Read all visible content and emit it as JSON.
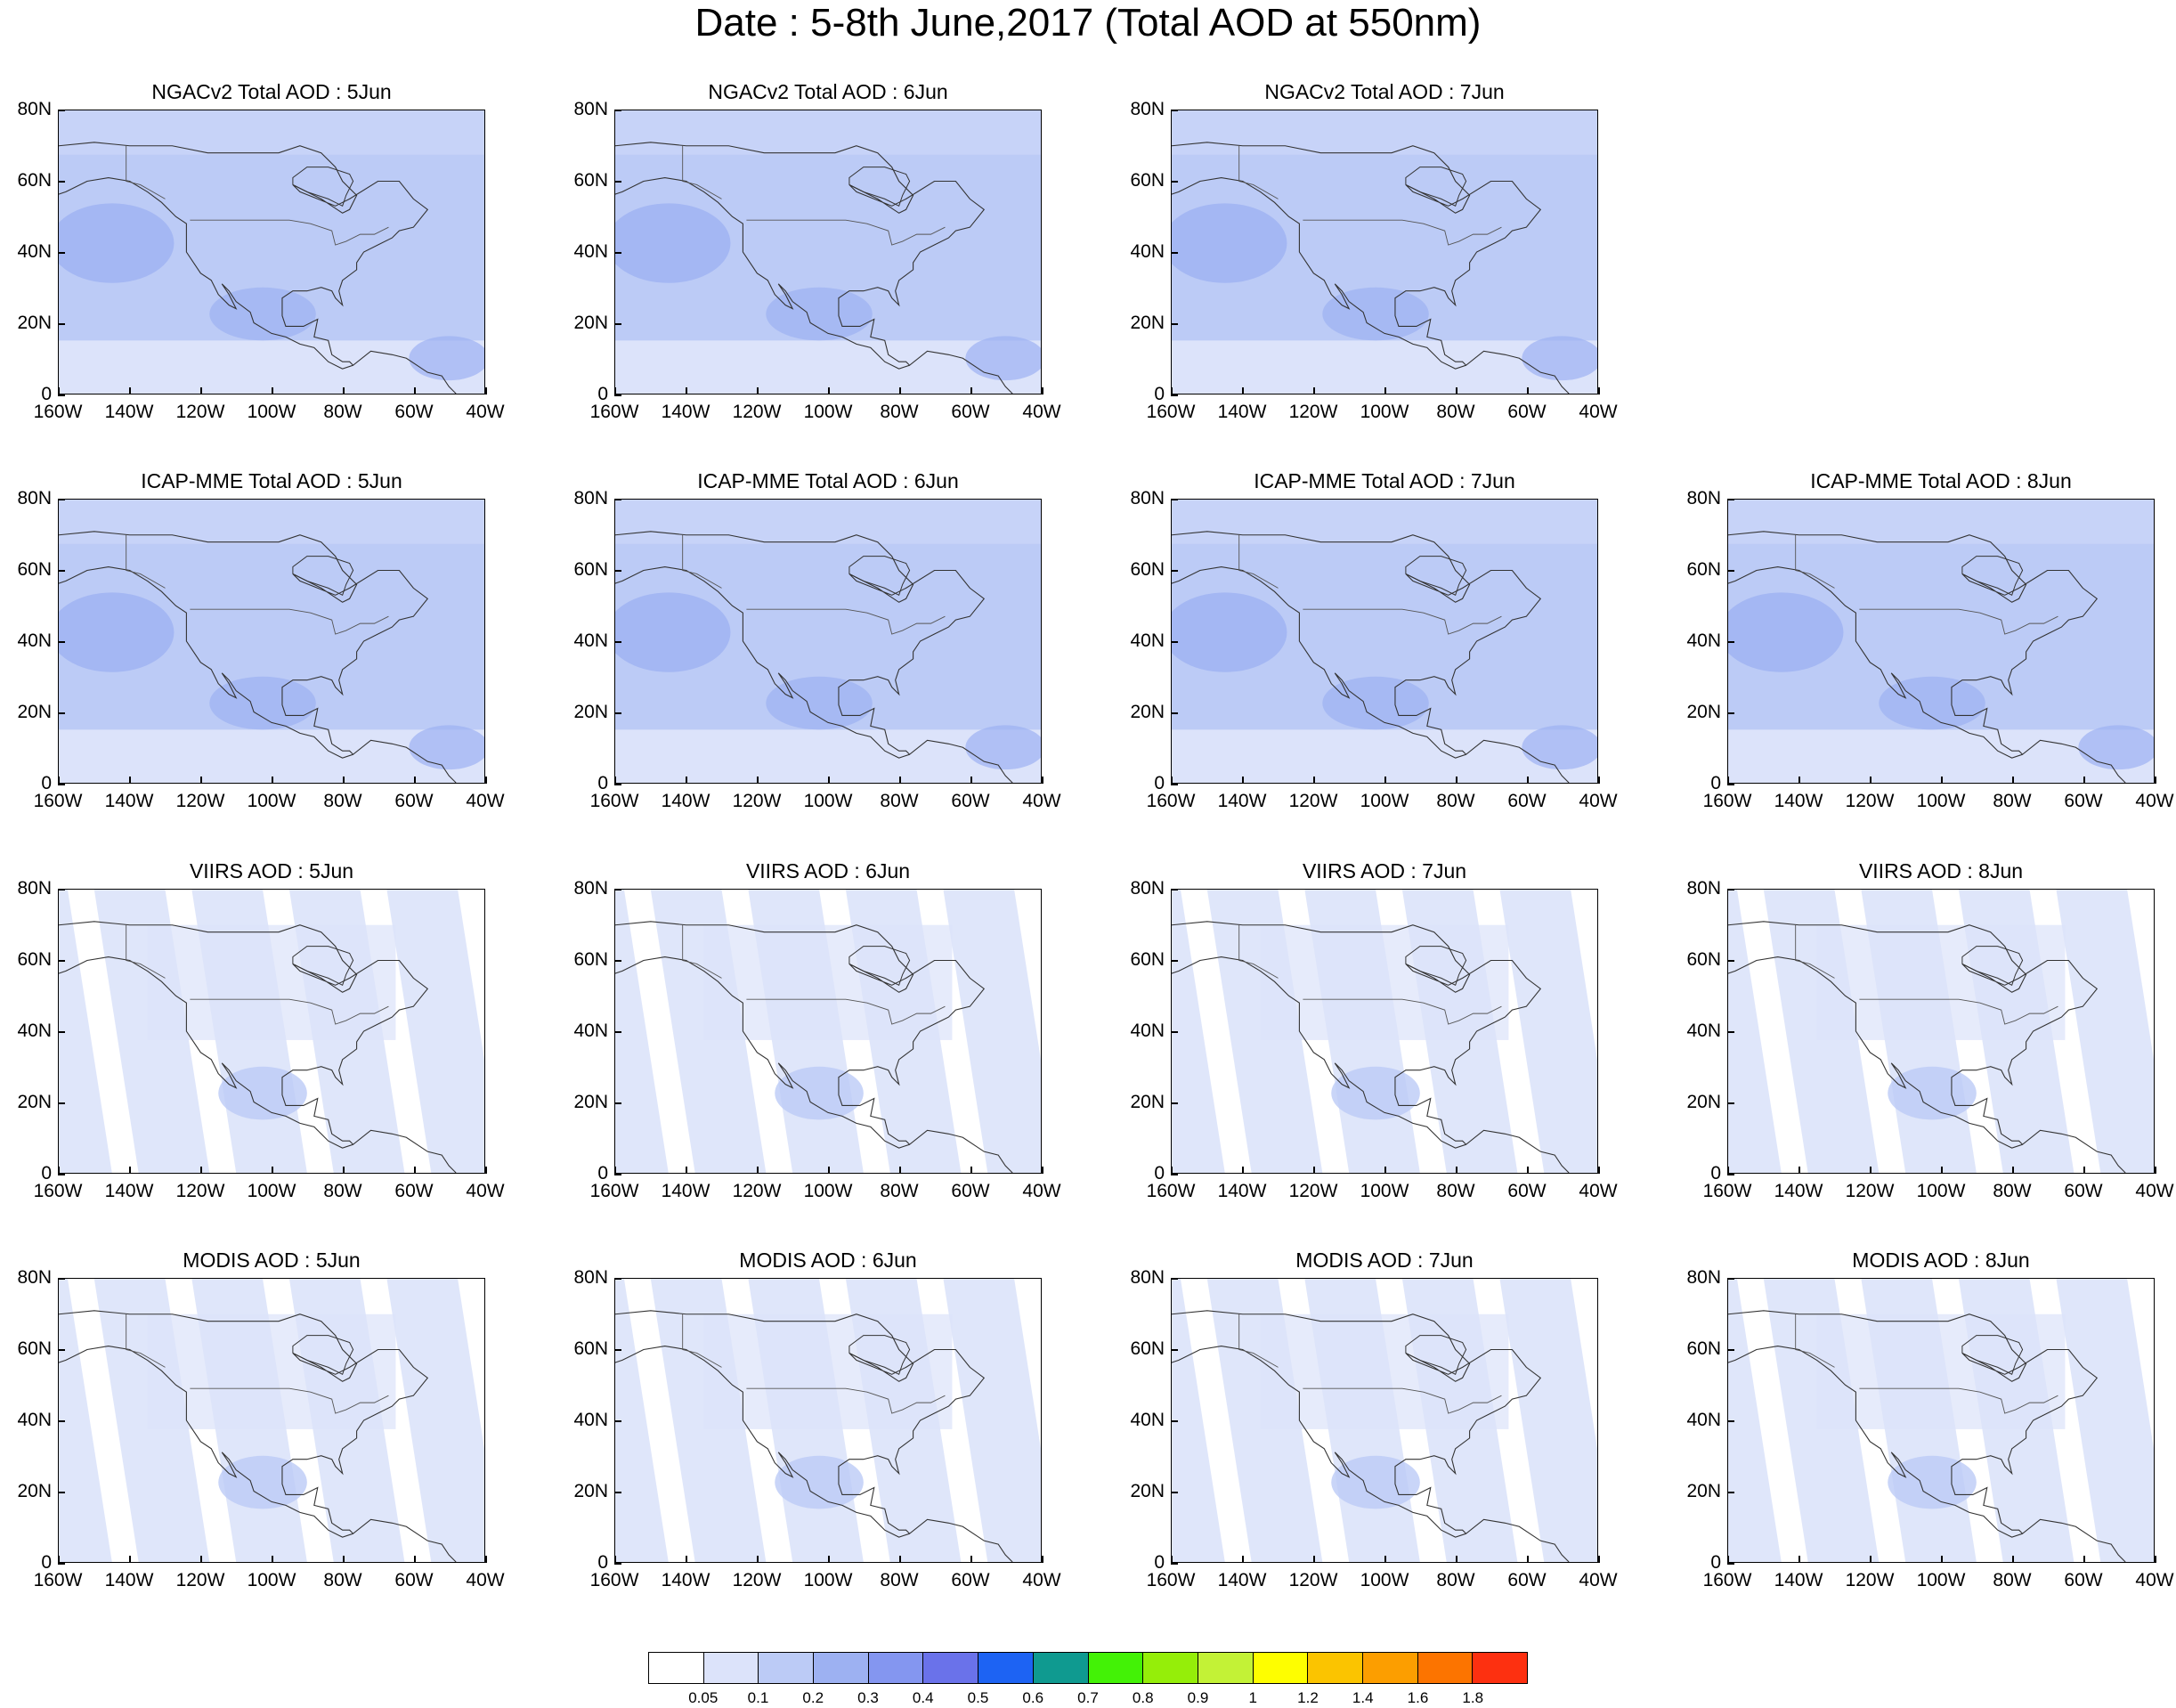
{
  "title": "Date : 5-8th June,2017 (Total AOD at 550nm)",
  "y_ticks": [
    "80N",
    "60N",
    "40N",
    "20N",
    "0"
  ],
  "x_ticks": [
    "160W",
    "140W",
    "120W",
    "100W",
    "80W",
    "60W",
    "40W"
  ],
  "rows": [
    {
      "source": "NGACv2",
      "kind": "model",
      "titles": [
        "NGACv2 Total AOD : 5Jun",
        "NGACv2 Total AOD : 6Jun",
        "NGACv2 Total AOD : 7Jun",
        null
      ]
    },
    {
      "source": "ICAP-MME",
      "kind": "model",
      "titles": [
        "ICAP-MME Total AOD : 5Jun",
        "ICAP-MME Total AOD : 6Jun",
        "ICAP-MME Total AOD : 7Jun",
        "ICAP-MME Total AOD : 8Jun"
      ]
    },
    {
      "source": "VIIRS",
      "kind": "satellite",
      "titles": [
        "VIIRS AOD : 5Jun",
        "VIIRS AOD : 6Jun",
        "VIIRS AOD : 7Jun",
        "VIIRS AOD : 8Jun"
      ]
    },
    {
      "source": "MODIS",
      "kind": "satellite",
      "titles": [
        "MODIS AOD : 5Jun",
        "MODIS AOD : 6Jun",
        "MODIS AOD : 7Jun",
        "MODIS AOD : 8Jun"
      ]
    }
  ],
  "colorbar": {
    "colors": [
      "#ffffff",
      "#dce3fa",
      "#bccbf6",
      "#9db1f2",
      "#8496f0",
      "#6a72ea",
      "#1d63f3",
      "#0f9a90",
      "#43f206",
      "#95ee09",
      "#c3f236",
      "#fefe00",
      "#fbc400",
      "#fc9e00",
      "#fc7400",
      "#fd3010"
    ],
    "labels": [
      "0.05",
      "0.1",
      "0.2",
      "0.3",
      "0.4",
      "0.5",
      "0.6",
      "0.7",
      "0.8",
      "0.9",
      "1",
      "1.2",
      "1.4",
      "1.6",
      "1.8"
    ]
  }
}
